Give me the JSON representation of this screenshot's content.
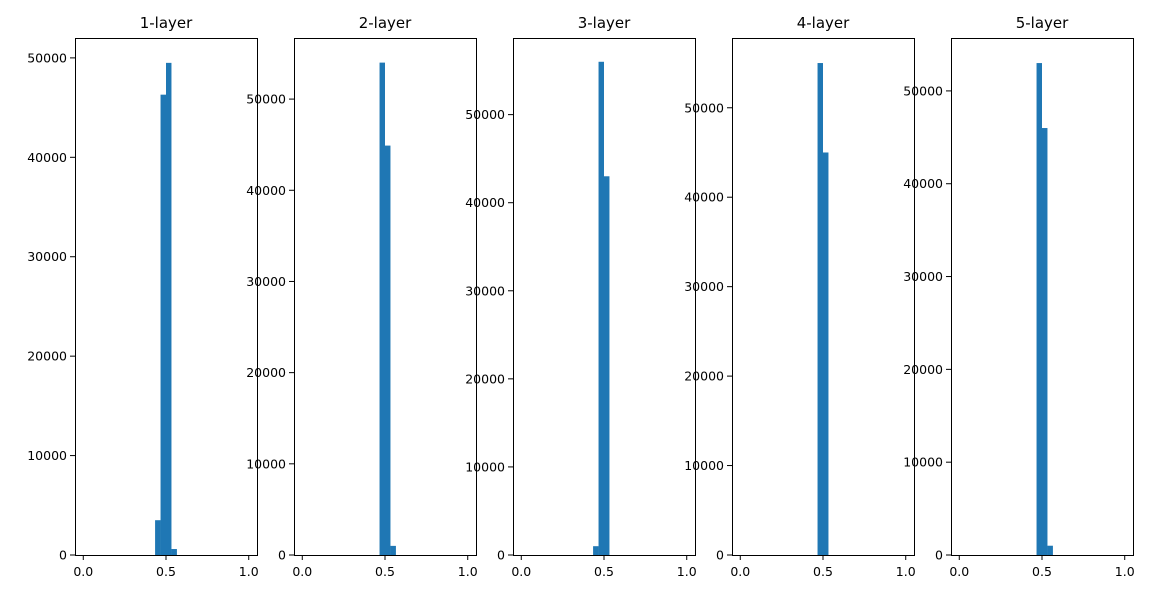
{
  "chart_data": [
    {
      "type": "bar",
      "title": "1-layer",
      "xlim": [
        -0.05,
        1.05
      ],
      "ylim": [
        0,
        52000
      ],
      "xticks": [
        0.0,
        0.5,
        1.0
      ],
      "xtick_labels": [
        "0.0",
        "0.5",
        "1.0"
      ],
      "yticks": [
        0,
        10000,
        20000,
        30000,
        40000,
        50000
      ],
      "ytick_labels": [
        "0",
        "10000",
        "20000",
        "30000",
        "40000",
        "50000"
      ],
      "bin_width": 0.033,
      "bins": [
        {
          "x0": 0.434,
          "value": 3500
        },
        {
          "x0": 0.467,
          "value": 46300
        },
        {
          "x0": 0.5,
          "value": 49500
        },
        {
          "x0": 0.533,
          "value": 600
        }
      ],
      "color": "#1f77b4"
    },
    {
      "type": "bar",
      "title": "2-layer",
      "xlim": [
        -0.05,
        1.05
      ],
      "ylim": [
        0,
        56700
      ],
      "xticks": [
        0.0,
        0.5,
        1.0
      ],
      "xtick_labels": [
        "0.0",
        "0.5",
        "1.0"
      ],
      "yticks": [
        0,
        10000,
        20000,
        30000,
        40000,
        50000
      ],
      "ytick_labels": [
        "0",
        "10000",
        "20000",
        "30000",
        "40000",
        "50000"
      ],
      "bin_width": 0.033,
      "bins": [
        {
          "x0": 0.467,
          "value": 54000
        },
        {
          "x0": 0.5,
          "value": 44900
        },
        {
          "x0": 0.533,
          "value": 1000
        }
      ],
      "color": "#1f77b4"
    },
    {
      "type": "bar",
      "title": "3-layer",
      "xlim": [
        -0.05,
        1.05
      ],
      "ylim": [
        0,
        58700
      ],
      "xticks": [
        0.0,
        0.5,
        1.0
      ],
      "xtick_labels": [
        "0.0",
        "0.5",
        "1.0"
      ],
      "yticks": [
        0,
        10000,
        20000,
        30000,
        40000,
        50000
      ],
      "ytick_labels": [
        "0",
        "10000",
        "20000",
        "30000",
        "40000",
        "50000"
      ],
      "bin_width": 0.033,
      "bins": [
        {
          "x0": 0.434,
          "value": 1000
        },
        {
          "x0": 0.467,
          "value": 56000
        },
        {
          "x0": 0.5,
          "value": 43000
        }
      ],
      "color": "#1f77b4"
    },
    {
      "type": "bar",
      "title": "4-layer",
      "xlim": [
        -0.05,
        1.05
      ],
      "ylim": [
        0,
        57800
      ],
      "xticks": [
        0.0,
        0.5,
        1.0
      ],
      "xtick_labels": [
        "0.0",
        "0.5",
        "1.0"
      ],
      "yticks": [
        0,
        10000,
        20000,
        30000,
        40000,
        50000
      ],
      "ytick_labels": [
        "0",
        "10000",
        "20000",
        "30000",
        "40000",
        "50000"
      ],
      "bin_width": 0.033,
      "bins": [
        {
          "x0": 0.467,
          "value": 55000
        },
        {
          "x0": 0.5,
          "value": 45000
        }
      ],
      "color": "#1f77b4"
    },
    {
      "type": "bar",
      "title": "5-layer",
      "xlim": [
        -0.05,
        1.05
      ],
      "ylim": [
        0,
        55700
      ],
      "xticks": [
        0.0,
        0.5,
        1.0
      ],
      "xtick_labels": [
        "0.0",
        "0.5",
        "1.0"
      ],
      "yticks": [
        0,
        10000,
        20000,
        30000,
        40000,
        50000
      ],
      "ytick_labels": [
        "0",
        "10000",
        "20000",
        "30000",
        "40000",
        "50000"
      ],
      "bin_width": 0.033,
      "bins": [
        {
          "x0": 0.467,
          "value": 53000
        },
        {
          "x0": 0.5,
          "value": 46000
        },
        {
          "x0": 0.533,
          "value": 1000
        }
      ],
      "color": "#1f77b4"
    }
  ]
}
